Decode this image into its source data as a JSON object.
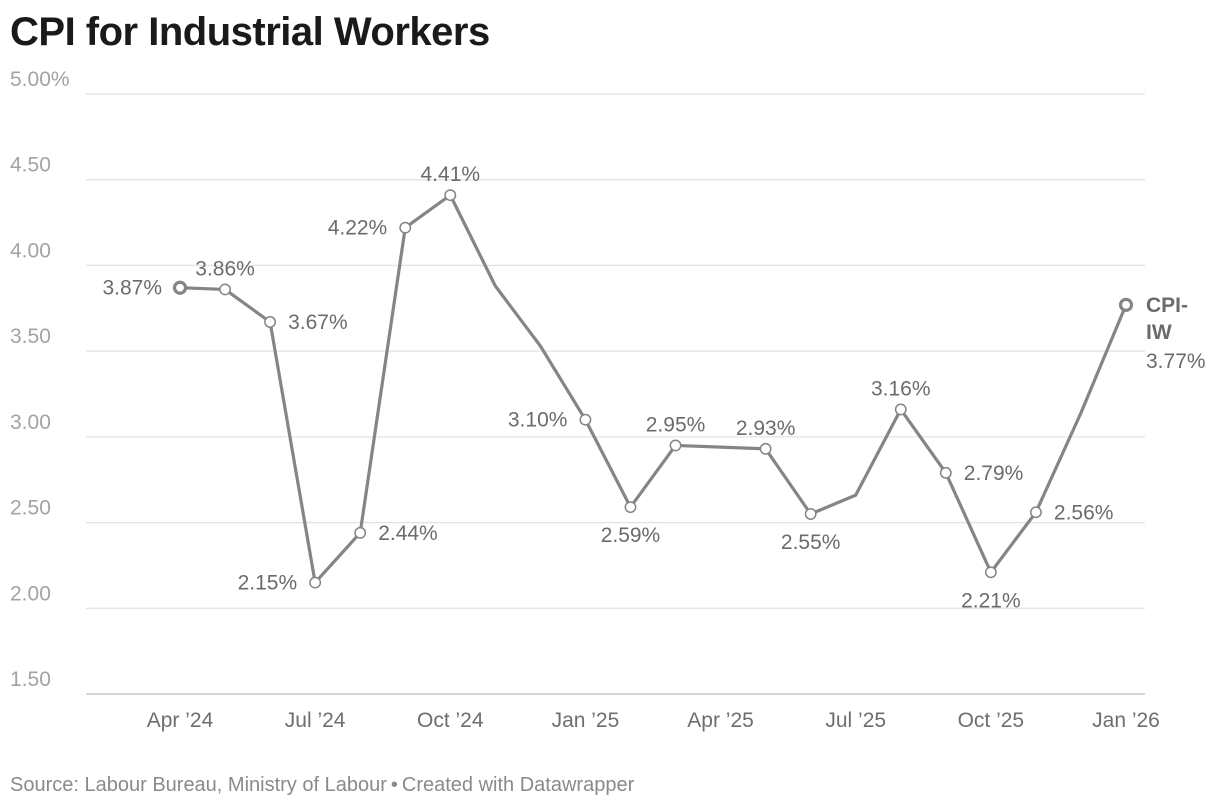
{
  "chart_data": {
    "type": "line",
    "title": "CPI for Industrial Workers",
    "source": "Source: Labour Bureau, Ministry of Labour",
    "credit": "Created with Datawrapper",
    "ylim": [
      1.5,
      5.0
    ],
    "y_ticks": [
      {
        "value": 5.0,
        "label": "5.00%"
      },
      {
        "value": 4.5,
        "label": "4.50"
      },
      {
        "value": 4.0,
        "label": "4.00"
      },
      {
        "value": 3.5,
        "label": "3.50"
      },
      {
        "value": 3.0,
        "label": "3.00"
      },
      {
        "value": 2.5,
        "label": "2.50"
      },
      {
        "value": 2.0,
        "label": "2.00"
      },
      {
        "value": 1.5,
        "label": "1.50"
      }
    ],
    "x_ticks": [
      {
        "index": 0,
        "label": "Apr ’24"
      },
      {
        "index": 3,
        "label": "Jul ’24"
      },
      {
        "index": 6,
        "label": "Oct ’24"
      },
      {
        "index": 9,
        "label": "Jan ’25"
      },
      {
        "index": 12,
        "label": "Apr ’25"
      },
      {
        "index": 15,
        "label": "Jul ’25"
      },
      {
        "index": 18,
        "label": "Oct ’25"
      },
      {
        "index": 21,
        "label": "Jan ’26"
      }
    ],
    "series": [
      {
        "name": "CPI-IW",
        "name_lines": [
          "CPI-",
          "IW"
        ],
        "last_value_label": "3.77%",
        "color": "#858585",
        "points": [
          {
            "x": "Apr 2024",
            "value": 3.87,
            "label": "3.87%",
            "pos": "left"
          },
          {
            "x": "May 2024",
            "value": 3.86,
            "label": "3.86%",
            "pos": "top"
          },
          {
            "x": "Jun 2024",
            "value": 3.67,
            "label": "3.67%",
            "pos": "right"
          },
          {
            "x": "Jul 2024",
            "value": 2.15,
            "label": "2.15%",
            "pos": "left"
          },
          {
            "x": "Aug 2024",
            "value": 2.44,
            "label": "2.44%",
            "pos": "right"
          },
          {
            "x": "Sep 2024",
            "value": 4.22,
            "label": "4.22%",
            "pos": "left"
          },
          {
            "x": "Oct 2024",
            "value": 4.41,
            "label": "4.41%",
            "pos": "top"
          },
          {
            "x": "Nov 2024",
            "value": 3.88,
            "label": null,
            "pos": null
          },
          {
            "x": "Dec 2024",
            "value": 3.53,
            "label": null,
            "pos": null
          },
          {
            "x": "Jan 2025",
            "value": 3.1,
            "label": "3.10%",
            "pos": "left"
          },
          {
            "x": "Feb 2025",
            "value": 2.59,
            "label": "2.59%",
            "pos": "bottom"
          },
          {
            "x": "Mar 2025",
            "value": 2.95,
            "label": "2.95%",
            "pos": "top"
          },
          {
            "x": "Apr 2025",
            "value": 2.94,
            "label": null,
            "pos": null
          },
          {
            "x": "May 2025",
            "value": 2.93,
            "label": "2.93%",
            "pos": "top"
          },
          {
            "x": "Jun 2025",
            "value": 2.55,
            "label": "2.55%",
            "pos": "bottom"
          },
          {
            "x": "Jul 2025",
            "value": 2.66,
            "label": null,
            "pos": null
          },
          {
            "x": "Aug 2025",
            "value": 3.16,
            "label": "3.16%",
            "pos": "top"
          },
          {
            "x": "Sep 2025",
            "value": 2.79,
            "label": "2.79%",
            "pos": "right"
          },
          {
            "x": "Oct 2025",
            "value": 2.21,
            "label": "2.21%",
            "pos": "bottom"
          },
          {
            "x": "Nov 2025",
            "value": 2.56,
            "label": "2.56%",
            "pos": "right"
          },
          {
            "x": "Dec 2025",
            "value": 3.14,
            "label": null,
            "pos": null
          },
          {
            "x": "Jan 2026",
            "value": 3.77,
            "label": null,
            "pos": null
          }
        ]
      }
    ]
  }
}
